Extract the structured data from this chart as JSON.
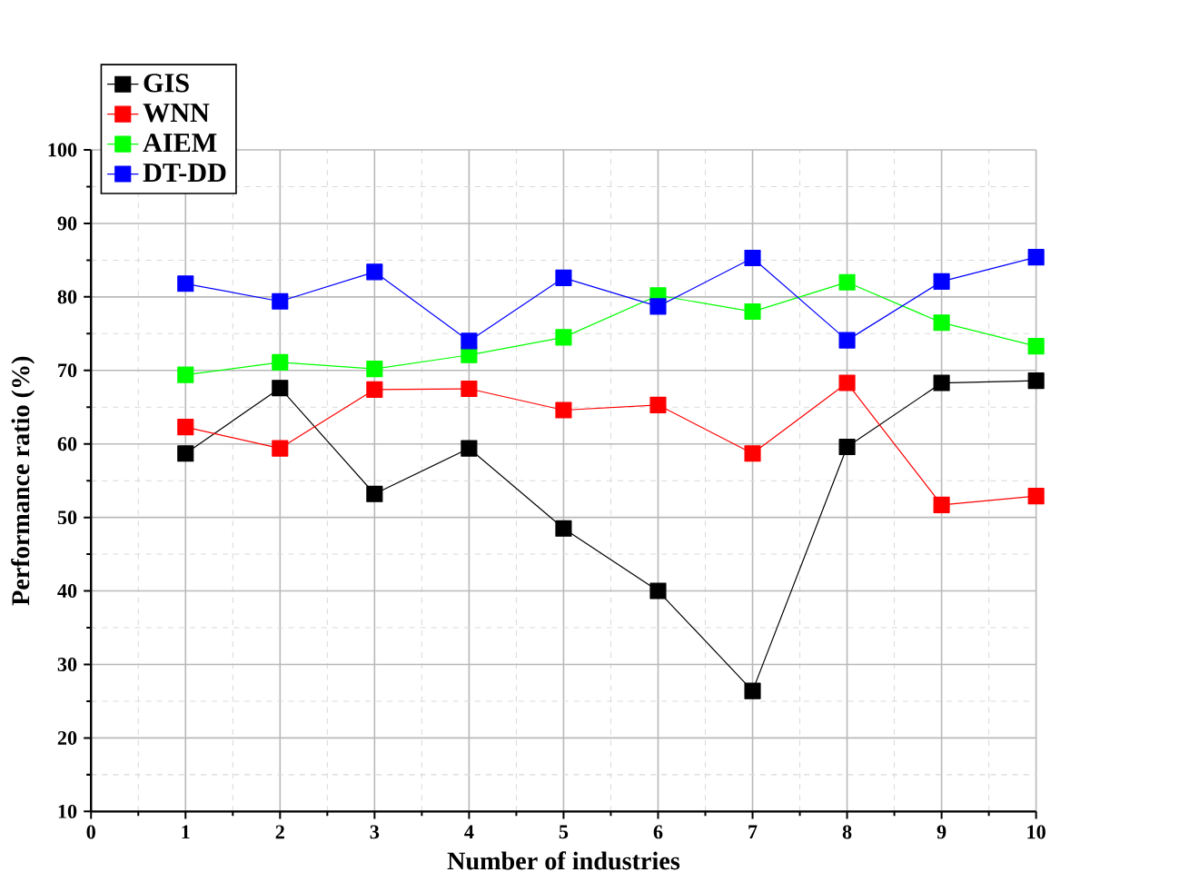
{
  "chart_data": {
    "type": "line",
    "xlabel": "Number of industries",
    "ylabel": "Performance ratio (%)",
    "x": [
      1,
      2,
      3,
      4,
      5,
      6,
      7,
      8,
      9,
      10
    ],
    "series": [
      {
        "name": "GIS",
        "color": "#000000",
        "values": [
          58.7,
          67.6,
          53.2,
          59.4,
          48.5,
          40.0,
          26.4,
          59.6,
          68.3,
          68.6
        ]
      },
      {
        "name": "WNN",
        "color": "#ff0000",
        "values": [
          62.3,
          59.4,
          67.4,
          67.5,
          64.6,
          65.3,
          58.7,
          68.3,
          51.7,
          52.9
        ]
      },
      {
        "name": "AIEM",
        "color": "#00ff00",
        "values": [
          69.4,
          71.1,
          70.2,
          72.1,
          74.5,
          80.2,
          78.0,
          82.0,
          76.5,
          73.3
        ]
      },
      {
        "name": "DT-DD",
        "color": "#0000ff",
        "values": [
          81.8,
          79.4,
          83.4,
          74.0,
          82.6,
          78.7,
          85.3,
          74.1,
          82.1,
          85.4
        ]
      }
    ],
    "xlim": [
      0,
      10
    ],
    "ylim": [
      10,
      100
    ],
    "xticks": [
      0,
      1,
      2,
      3,
      4,
      5,
      6,
      7,
      8,
      9,
      10
    ],
    "yticks": [
      10,
      20,
      30,
      40,
      50,
      60,
      70,
      80,
      90,
      100
    ],
    "grid": true,
    "legend": "top left",
    "marker": "square",
    "line_style": "solid"
  }
}
